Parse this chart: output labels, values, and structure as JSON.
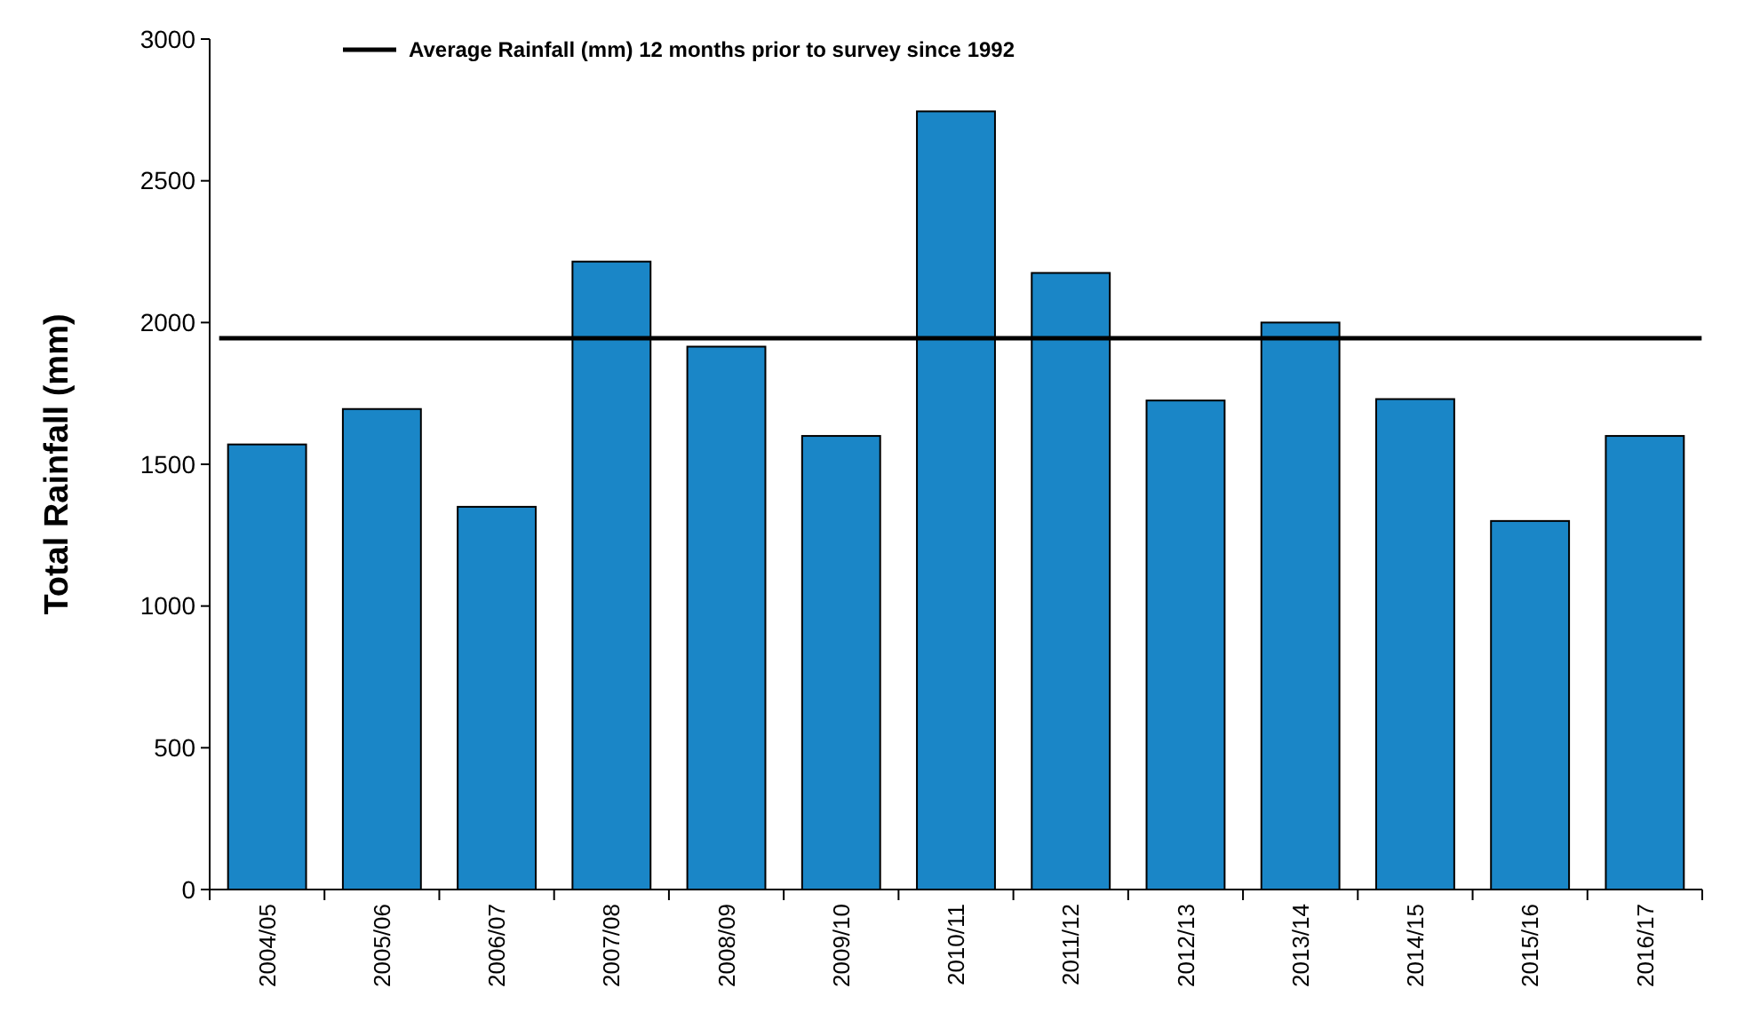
{
  "chart_data": {
    "type": "bar",
    "ylabel": "Total Rainfall (mm)",
    "categories": [
      "2004/05",
      "2005/06",
      "2006/07",
      "2007/08",
      "2008/09",
      "2009/10",
      "2010/11",
      "2011/12",
      "2012/13",
      "2013/14",
      "2014/15",
      "2015/16",
      "2016/17"
    ],
    "values": [
      1570,
      1695,
      1350,
      2215,
      1915,
      1600,
      2745,
      2175,
      1725,
      2000,
      1730,
      1300,
      1600
    ],
    "color": "#1a86c7",
    "ylim": [
      0,
      3000
    ],
    "yticks": [
      0,
      500,
      1000,
      1500,
      2000,
      2500,
      3000
    ],
    "ref_lines": [
      {
        "axis": "y",
        "value": 1945,
        "label": "Average Rainfall (mm) 12 months prior to survey since 1992",
        "color": "#000000",
        "line_style": "solid"
      }
    ],
    "grid": false
  }
}
